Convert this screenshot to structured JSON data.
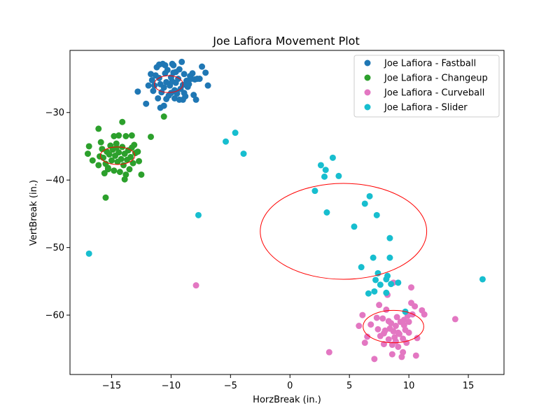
{
  "chart_data": {
    "type": "scatter",
    "title": "Joe Lafiora Movement Plot",
    "xlabel": "HorzBreak (in.)",
    "ylabel": "VertBreak (in.)",
    "xlim": [
      -18.5,
      18.0
    ],
    "ylim": [
      -68.8,
      -20.8
    ],
    "xticks": [
      -15,
      -10,
      -5,
      0,
      5,
      10,
      15
    ],
    "xtick_labels": [
      "−15",
      "−10",
      "−5",
      "0",
      "5",
      "10",
      "15"
    ],
    "yticks": [
      -60,
      -50,
      -40,
      -30
    ],
    "ytick_labels": [
      "−60",
      "−50",
      "−40",
      "−30"
    ],
    "grid": false,
    "legend_position": "top-right",
    "series": [
      {
        "name": "Joe Lafiora - Fastball",
        "color": "#1f77b4",
        "ellipse": {
          "cx": -10.2,
          "cy": -25.8,
          "rx": 1.2,
          "ry": 1.25
        },
        "points": [
          [
            -11.9,
            -26.0
          ],
          [
            -11.5,
            -26.8
          ],
          [
            -11.3,
            -24.5
          ],
          [
            -11.2,
            -23.3
          ],
          [
            -11.0,
            -22.9
          ],
          [
            -10.9,
            -25.8
          ],
          [
            -10.8,
            -27.0
          ],
          [
            -10.6,
            -26.3
          ],
          [
            -10.5,
            -24.2
          ],
          [
            -10.4,
            -25.5
          ],
          [
            -10.3,
            -23.7
          ],
          [
            -10.2,
            -27.5
          ],
          [
            -10.1,
            -26.0
          ],
          [
            -10.0,
            -24.8
          ],
          [
            -9.9,
            -25.4
          ],
          [
            -9.8,
            -23.0
          ],
          [
            -9.7,
            -26.7
          ],
          [
            -9.6,
            -24.0
          ],
          [
            -9.5,
            -27.2
          ],
          [
            -9.4,
            -25.0
          ],
          [
            -9.3,
            -23.6
          ],
          [
            -9.2,
            -26.5
          ],
          [
            -9.1,
            -22.5
          ],
          [
            -9.0,
            -25.9
          ],
          [
            -8.9,
            -24.3
          ],
          [
            -8.8,
            -27.6
          ],
          [
            -8.7,
            -25.3
          ],
          [
            -8.6,
            -26.2
          ],
          [
            -8.4,
            -24.6
          ],
          [
            -8.3,
            -25.0
          ],
          [
            -10.7,
            -22.8
          ],
          [
            -11.6,
            -25.2
          ],
          [
            -11.1,
            -27.9
          ],
          [
            -10.4,
            -28.0
          ],
          [
            -9.7,
            -27.9
          ],
          [
            -9.0,
            -28.1
          ],
          [
            -10.9,
            -29.3
          ],
          [
            -12.1,
            -28.7
          ],
          [
            -12.8,
            -26.9
          ],
          [
            -11.7,
            -24.3
          ],
          [
            -10.5,
            -23.0
          ],
          [
            -9.9,
            -22.8
          ],
          [
            -9.3,
            -28.1
          ],
          [
            -8.9,
            -27.1
          ],
          [
            -8.2,
            -24.2
          ],
          [
            -8.0,
            -25.1
          ],
          [
            -7.8,
            -25.0
          ],
          [
            -7.6,
            -25.0
          ],
          [
            -7.4,
            -23.2
          ],
          [
            -7.1,
            -24.1
          ],
          [
            -6.9,
            -26.0
          ],
          [
            -7.9,
            -28.1
          ],
          [
            -8.1,
            -27.4
          ],
          [
            -10.6,
            -29.0
          ],
          [
            -11.4,
            -26.0
          ],
          [
            -11.0,
            -24.9
          ],
          [
            -9.6,
            -25.6
          ],
          [
            -8.5,
            -25.8
          ],
          [
            -10.0,
            -27.1
          ],
          [
            -9.8,
            -24.1
          ]
        ]
      },
      {
        "name": "Joe Lafiora - Changeup",
        "color": "#2ca02c",
        "ellipse": {
          "cx": -14.5,
          "cy": -36.4,
          "rx": 1.45,
          "ry": 1.3
        },
        "points": [
          [
            -16.9,
            -35.0
          ],
          [
            -17.0,
            -36.1
          ],
          [
            -16.6,
            -37.1
          ],
          [
            -16.1,
            -37.8
          ],
          [
            -16.0,
            -36.5
          ],
          [
            -15.8,
            -35.4
          ],
          [
            -15.7,
            -36.7
          ],
          [
            -15.5,
            -37.6
          ],
          [
            -15.4,
            -35.8
          ],
          [
            -15.3,
            -38.2
          ],
          [
            -15.2,
            -36.2
          ],
          [
            -15.1,
            -34.9
          ],
          [
            -15.0,
            -37.1
          ],
          [
            -14.9,
            -35.5
          ],
          [
            -14.8,
            -38.6
          ],
          [
            -14.7,
            -36.4
          ],
          [
            -14.6,
            -34.6
          ],
          [
            -14.5,
            -37.3
          ],
          [
            -14.4,
            -35.9
          ],
          [
            -14.3,
            -38.8
          ],
          [
            -14.2,
            -36.9
          ],
          [
            -14.1,
            -35.1
          ],
          [
            -14.0,
            -37.8
          ],
          [
            -13.9,
            -36.1
          ],
          [
            -13.8,
            -39.2
          ],
          [
            -13.7,
            -37.0
          ],
          [
            -13.6,
            -35.6
          ],
          [
            -13.5,
            -38.4
          ],
          [
            -13.4,
            -36.6
          ],
          [
            -13.3,
            -35.2
          ],
          [
            -13.2,
            -37.5
          ],
          [
            -13.0,
            -36.0
          ],
          [
            -12.8,
            -35.8
          ],
          [
            -12.7,
            -37.2
          ],
          [
            -15.6,
            -39.0
          ],
          [
            -14.8,
            -33.5
          ],
          [
            -14.4,
            -33.4
          ],
          [
            -13.8,
            -33.5
          ],
          [
            -13.3,
            -33.4
          ],
          [
            -11.7,
            -33.6
          ],
          [
            -12.5,
            -39.2
          ],
          [
            -13.9,
            -39.9
          ],
          [
            -15.3,
            -38.4
          ],
          [
            -16.1,
            -32.4
          ],
          [
            -14.1,
            -31.4
          ],
          [
            -10.6,
            -30.6
          ],
          [
            -15.5,
            -42.6
          ],
          [
            -15.9,
            -34.4
          ],
          [
            -13.1,
            -34.8
          ],
          [
            -14.6,
            -35.2
          ]
        ]
      },
      {
        "name": "Joe Lafiora - Curveball",
        "color": "#e377c2",
        "ellipse": {
          "cx": 8.7,
          "cy": -61.7,
          "rx": 2.55,
          "ry": 2.4
        },
        "points": [
          [
            -7.9,
            -55.6
          ],
          [
            3.3,
            -65.5
          ],
          [
            5.8,
            -61.6
          ],
          [
            6.1,
            -60.0
          ],
          [
            6.3,
            -64.1
          ],
          [
            6.5,
            -63.2
          ],
          [
            6.8,
            -61.4
          ],
          [
            7.1,
            -66.5
          ],
          [
            7.3,
            -60.4
          ],
          [
            7.5,
            -58.5
          ],
          [
            7.6,
            -63.1
          ],
          [
            7.8,
            -60.5
          ],
          [
            7.9,
            -64.3
          ],
          [
            8.0,
            -62.3
          ],
          [
            8.1,
            -59.2
          ],
          [
            8.2,
            -57.0
          ],
          [
            8.3,
            -63.6
          ],
          [
            8.4,
            -62.0
          ],
          [
            8.5,
            -61.2
          ],
          [
            8.6,
            -65.8
          ],
          [
            8.7,
            -62.4
          ],
          [
            8.8,
            -63.3
          ],
          [
            8.9,
            -61.6
          ],
          [
            9.0,
            -60.3
          ],
          [
            9.1,
            -64.7
          ],
          [
            9.2,
            -62.8
          ],
          [
            9.3,
            -61.0
          ],
          [
            9.4,
            -66.2
          ],
          [
            9.5,
            -63.5
          ],
          [
            9.6,
            -60.7
          ],
          [
            9.7,
            -62.2
          ],
          [
            9.8,
            -64.1
          ],
          [
            9.9,
            -60.1
          ],
          [
            10.0,
            -62.6
          ],
          [
            10.2,
            -58.2
          ],
          [
            10.3,
            -59.9
          ],
          [
            10.5,
            -58.7
          ],
          [
            10.6,
            -66.0
          ],
          [
            10.7,
            -63.4
          ],
          [
            11.1,
            -59.3
          ],
          [
            11.3,
            -59.9
          ],
          [
            13.9,
            -60.6
          ],
          [
            10.2,
            -55.9
          ],
          [
            8.7,
            -55.2
          ],
          [
            9.5,
            -65.5
          ],
          [
            8.9,
            -63.9
          ],
          [
            9.6,
            -61.5
          ],
          [
            8.3,
            -60.9
          ],
          [
            9.1,
            -62.6
          ],
          [
            7.4,
            -62.1
          ],
          [
            10.0,
            -61.0
          ],
          [
            8.6,
            -64.4
          ],
          [
            7.9,
            -62.7
          ]
        ]
      },
      {
        "name": "Joe Lafiora - Slider",
        "color": "#17becf",
        "ellipse": {
          "cx": 4.5,
          "cy": -47.6,
          "rx": 7.0,
          "ry": 7.1
        },
        "points": [
          [
            -16.9,
            -50.9
          ],
          [
            -7.7,
            -45.2
          ],
          [
            -5.4,
            -34.3
          ],
          [
            -4.6,
            -33.0
          ],
          [
            -3.9,
            -36.1
          ],
          [
            2.1,
            -41.6
          ],
          [
            2.6,
            -37.8
          ],
          [
            2.9,
            -39.5
          ],
          [
            3.0,
            -38.5
          ],
          [
            3.1,
            -44.8
          ],
          [
            3.6,
            -36.7
          ],
          [
            4.1,
            -39.4
          ],
          [
            5.4,
            -46.9
          ],
          [
            6.0,
            -52.9
          ],
          [
            6.3,
            -43.5
          ],
          [
            6.7,
            -42.4
          ],
          [
            6.6,
            -56.8
          ],
          [
            7.0,
            -51.5
          ],
          [
            7.1,
            -56.5
          ],
          [
            7.2,
            -54.8
          ],
          [
            7.3,
            -45.2
          ],
          [
            7.4,
            -53.8
          ],
          [
            7.6,
            -55.5
          ],
          [
            8.1,
            -56.7
          ],
          [
            8.1,
            -54.7
          ],
          [
            8.2,
            -54.2
          ],
          [
            8.4,
            -48.6
          ],
          [
            8.4,
            -51.5
          ],
          [
            8.5,
            -55.4
          ],
          [
            9.1,
            -55.2
          ],
          [
            9.7,
            -59.5
          ],
          [
            16.2,
            -54.7
          ]
        ]
      }
    ]
  }
}
